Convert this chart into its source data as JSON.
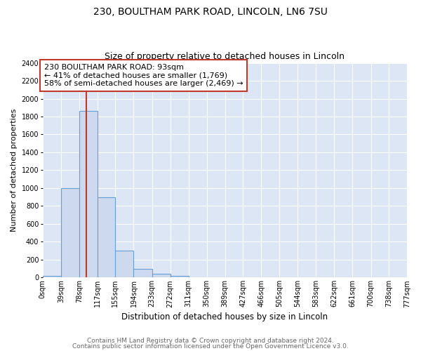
{
  "title": "230, BOULTHAM PARK ROAD, LINCOLN, LN6 7SU",
  "subtitle": "Size of property relative to detached houses in Lincoln",
  "xlabel": "Distribution of detached houses by size in Lincoln",
  "ylabel": "Number of detached properties",
  "bar_edges": [
    0,
    39,
    78,
    117,
    155,
    194,
    233,
    272,
    311,
    350,
    389,
    427,
    466,
    505,
    544,
    583,
    622,
    661,
    700,
    738,
    777
  ],
  "bar_heights": [
    20,
    1000,
    1860,
    900,
    300,
    100,
    40,
    20,
    0,
    0,
    0,
    0,
    0,
    0,
    0,
    0,
    0,
    0,
    0,
    0
  ],
  "tick_labels": [
    "0sqm",
    "39sqm",
    "78sqm",
    "117sqm",
    "155sqm",
    "194sqm",
    "233sqm",
    "272sqm",
    "311sqm",
    "350sqm",
    "389sqm",
    "427sqm",
    "466sqm",
    "505sqm",
    "544sqm",
    "583sqm",
    "622sqm",
    "661sqm",
    "700sqm",
    "738sqm",
    "777sqm"
  ],
  "bar_color": "#ccd9ee",
  "bar_edge_color": "#6b9fd4",
  "property_line_x": 93,
  "property_line_color": "#c0392b",
  "annotation_text": "230 BOULTHAM PARK ROAD: 93sqm\n← 41% of detached houses are smaller (1,769)\n58% of semi-detached houses are larger (2,469) →",
  "annotation_box_color": "#ffffff",
  "annotation_box_edge": "#c0392b",
  "ylim": [
    0,
    2400
  ],
  "yticks": [
    0,
    200,
    400,
    600,
    800,
    1000,
    1200,
    1400,
    1600,
    1800,
    2000,
    2200,
    2400
  ],
  "plot_bg_color": "#dce6f5",
  "fig_bg_color": "#ffffff",
  "footer_line1": "Contains HM Land Registry data © Crown copyright and database right 2024.",
  "footer_line2": "Contains public sector information licensed under the Open Government Licence v3.0.",
  "title_fontsize": 10,
  "subtitle_fontsize": 9,
  "xlabel_fontsize": 8.5,
  "ylabel_fontsize": 8,
  "tick_fontsize": 7,
  "annotation_fontsize": 8,
  "footer_fontsize": 6.5,
  "footer_color": "#666666"
}
